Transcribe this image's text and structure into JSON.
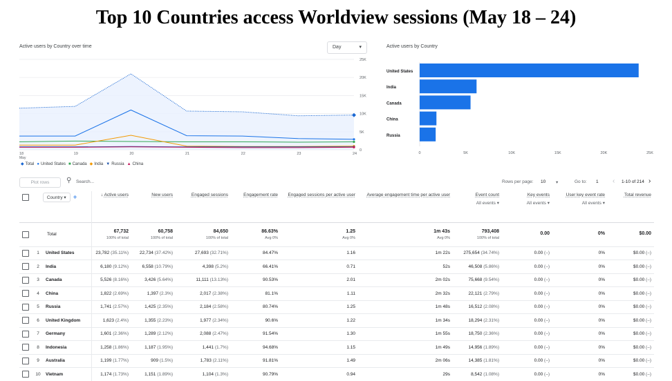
{
  "title": "Top 10 Countries access Worldview sessions (May 18 – 24)",
  "line_chart": {
    "label": "Active users by Country over time",
    "dropdown_value": "Day",
    "legend": [
      {
        "name": "Total",
        "color": "#1967d2",
        "icon": "diamond-icon"
      },
      {
        "name": "United States",
        "color": "#1a73e8",
        "icon": "circle-icon"
      },
      {
        "name": "Canada",
        "color": "#34a853",
        "icon": "square-icon"
      },
      {
        "name": "India",
        "color": "#f29900",
        "icon": "diamond-icon"
      },
      {
        "name": "Russia",
        "color": "#174ea6",
        "icon": "triangle-down-icon"
      },
      {
        "name": "China",
        "color": "#c2185b",
        "icon": "triangle-up-icon"
      }
    ]
  },
  "bar_chart": {
    "label": "Active users by Country"
  },
  "chart_data": [
    {
      "type": "line",
      "x": [
        "18",
        "19",
        "20",
        "21",
        "22",
        "23",
        "24"
      ],
      "x_sub": "May",
      "y_ticks": [
        "0",
        "5K",
        "10K",
        "15K",
        "20K",
        "25K"
      ],
      "ylim": [
        0,
        25000
      ],
      "grid": true,
      "legend_placement": "bottom-left",
      "series": [
        {
          "name": "Total",
          "values": [
            11500,
            12000,
            21000,
            10700,
            10500,
            9400,
            9600
          ],
          "color": "#1967d2",
          "style": "dotted",
          "fill": "#e8f0fe"
        },
        {
          "name": "United States",
          "values": [
            3800,
            3800,
            11000,
            3900,
            3800,
            3100,
            2900
          ],
          "color": "#1a73e8"
        },
        {
          "name": "Canada",
          "values": [
            2200,
            2400,
            2300,
            2200,
            2200,
            2100,
            2200
          ],
          "color": "#34a853"
        },
        {
          "name": "India",
          "values": [
            1300,
            1300,
            4000,
            1000,
            900,
            900,
            1000
          ],
          "color": "#f29900"
        },
        {
          "name": "Russia",
          "values": [
            800,
            800,
            900,
            800,
            800,
            800,
            800
          ],
          "color": "#174ea6"
        },
        {
          "name": "China",
          "values": [
            700,
            700,
            800,
            700,
            600,
            600,
            700
          ],
          "color": "#c2185b"
        }
      ]
    },
    {
      "type": "bar",
      "orientation": "horizontal",
      "categories": [
        "United States",
        "India",
        "Canada",
        "China",
        "Russia"
      ],
      "values": [
        23782,
        6180,
        5526,
        1822,
        1741
      ],
      "x_ticks": [
        "0",
        "5K",
        "10K",
        "15K",
        "20K",
        "25K"
      ],
      "xlim": [
        0,
        25000
      ],
      "color": "#1a73e8"
    }
  ],
  "toolbar": {
    "plot_rows": "Plot rows",
    "search_placeholder": "Search...",
    "rows_per_page_label": "Rows per page:",
    "rows_per_page": "10",
    "goto_label": "Go to:",
    "goto_value": "1",
    "page_range": "1-10 of 214"
  },
  "table": {
    "dimension": "Country",
    "columns": [
      {
        "label": "Active users",
        "sub": ""
      },
      {
        "label": "New users",
        "sub": ""
      },
      {
        "label": "Engaged sessions",
        "sub": ""
      },
      {
        "label": "Engagement rate",
        "sub": ""
      },
      {
        "label": "Engaged sessions per active user",
        "sub": ""
      },
      {
        "label": "Average engagement time per active user",
        "sub": ""
      },
      {
        "label": "Event count",
        "sub": "All events"
      },
      {
        "label": "Key events",
        "sub": "All events"
      },
      {
        "label": "User key event rate",
        "sub": "All events"
      },
      {
        "label": "Total revenue",
        "sub": ""
      }
    ],
    "total": {
      "label": "Total",
      "cells": [
        {
          "v": "67,732",
          "s": "100% of total"
        },
        {
          "v": "60,758",
          "s": "100% of total"
        },
        {
          "v": "84,650",
          "s": "100% of total"
        },
        {
          "v": "86.63%",
          "s": "Avg 0%"
        },
        {
          "v": "1.25",
          "s": "Avg 0%"
        },
        {
          "v": "1m 43s",
          "s": "Avg 0%"
        },
        {
          "v": "793,408",
          "s": "100% of total"
        },
        {
          "v": "0.00",
          "s": ""
        },
        {
          "v": "0%",
          "s": ""
        },
        {
          "v": "$0.00",
          "s": ""
        }
      ]
    },
    "rows": [
      {
        "i": "1",
        "c": "United States",
        "au": "23,782",
        "aup": "(35.11%)",
        "nu": "22,734",
        "nup": "(37.42%)",
        "es": "27,693",
        "esp": "(32.71%)",
        "er": "84.47%",
        "espu": "1.16",
        "aet": "1m 22s",
        "ec": "275,654",
        "ecp": "(34.74%)",
        "ke": "0.00",
        "kep": "(–)",
        "ukr": "0%",
        "rev": "$0.00",
        "revp": "(–)"
      },
      {
        "i": "2",
        "c": "India",
        "au": "6,180",
        "aup": "(9.12%)",
        "nu": "6,558",
        "nup": "(10.79%)",
        "es": "4,398",
        "esp": "(5.2%)",
        "er": "66.41%",
        "espu": "0.71",
        "aet": "52s",
        "ec": "46,508",
        "ecp": "(5.86%)",
        "ke": "0.00",
        "kep": "(–)",
        "ukr": "0%",
        "rev": "$0.00",
        "revp": "(–)"
      },
      {
        "i": "3",
        "c": "Canada",
        "au": "5,526",
        "aup": "(8.16%)",
        "nu": "3,426",
        "nup": "(5.64%)",
        "es": "11,111",
        "esp": "(13.13%)",
        "er": "90.53%",
        "espu": "2.01",
        "aet": "2m 02s",
        "ec": "75,668",
        "ecp": "(9.54%)",
        "ke": "0.00",
        "kep": "(–)",
        "ukr": "0%",
        "rev": "$0.00",
        "revp": "(–)"
      },
      {
        "i": "4",
        "c": "China",
        "au": "1,822",
        "aup": "(2.69%)",
        "nu": "1,397",
        "nup": "(2.3%)",
        "es": "2,017",
        "esp": "(2.38%)",
        "er": "81.1%",
        "espu": "1.11",
        "aet": "2m 32s",
        "ec": "22,121",
        "ecp": "(2.79%)",
        "ke": "0.00",
        "kep": "(–)",
        "ukr": "0%",
        "rev": "$0.00",
        "revp": "(–)"
      },
      {
        "i": "5",
        "c": "Russia",
        "au": "1,741",
        "aup": "(2.57%)",
        "nu": "1,425",
        "nup": "(2.35%)",
        "es": "2,184",
        "esp": "(2.58%)",
        "er": "80.74%",
        "espu": "1.25",
        "aet": "1m 48s",
        "ec": "16,512",
        "ecp": "(2.08%)",
        "ke": "0.00",
        "kep": "(–)",
        "ukr": "0%",
        "rev": "$0.00",
        "revp": "(–)"
      },
      {
        "i": "6",
        "c": "United Kingdom",
        "au": "1,623",
        "aup": "(2.4%)",
        "nu": "1,355",
        "nup": "(2.23%)",
        "es": "1,977",
        "esp": "(2.34%)",
        "er": "90.6%",
        "espu": "1.22",
        "aet": "1m 34s",
        "ec": "18,294",
        "ecp": "(2.31%)",
        "ke": "0.00",
        "kep": "(–)",
        "ukr": "0%",
        "rev": "$0.00",
        "revp": "(–)"
      },
      {
        "i": "7",
        "c": "Germany",
        "au": "1,601",
        "aup": "(2.36%)",
        "nu": "1,289",
        "nup": "(2.12%)",
        "es": "2,088",
        "esp": "(2.47%)",
        "er": "91.54%",
        "espu": "1.30",
        "aet": "1m 55s",
        "ec": "18,750",
        "ecp": "(2.36%)",
        "ke": "0.00",
        "kep": "(–)",
        "ukr": "0%",
        "rev": "$0.00",
        "revp": "(–)"
      },
      {
        "i": "8",
        "c": "Indonesia",
        "au": "1,258",
        "aup": "(1.86%)",
        "nu": "1,187",
        "nup": "(1.95%)",
        "es": "1,441",
        "esp": "(1.7%)",
        "er": "94.68%",
        "espu": "1.15",
        "aet": "1m 49s",
        "ec": "14,956",
        "ecp": "(1.89%)",
        "ke": "0.00",
        "kep": "(–)",
        "ukr": "0%",
        "rev": "$0.00",
        "revp": "(–)"
      },
      {
        "i": "9",
        "c": "Australia",
        "au": "1,199",
        "aup": "(1.77%)",
        "nu": "909",
        "nup": "(1.5%)",
        "es": "1,783",
        "esp": "(2.11%)",
        "er": "91.81%",
        "espu": "1.49",
        "aet": "2m 06s",
        "ec": "14,385",
        "ecp": "(1.81%)",
        "ke": "0.00",
        "kep": "(–)",
        "ukr": "0%",
        "rev": "$0.00",
        "revp": "(–)"
      },
      {
        "i": "10",
        "c": "Vietnam",
        "au": "1,174",
        "aup": "(1.73%)",
        "nu": "1,151",
        "nup": "(1.89%)",
        "es": "1,104",
        "esp": "(1.3%)",
        "er": "90.79%",
        "espu": "0.94",
        "aet": "29s",
        "ec": "8,542",
        "ecp": "(1.08%)",
        "ke": "0.00",
        "kep": "(–)",
        "ukr": "0%",
        "rev": "$0.00",
        "revp": "(–)"
      }
    ]
  }
}
